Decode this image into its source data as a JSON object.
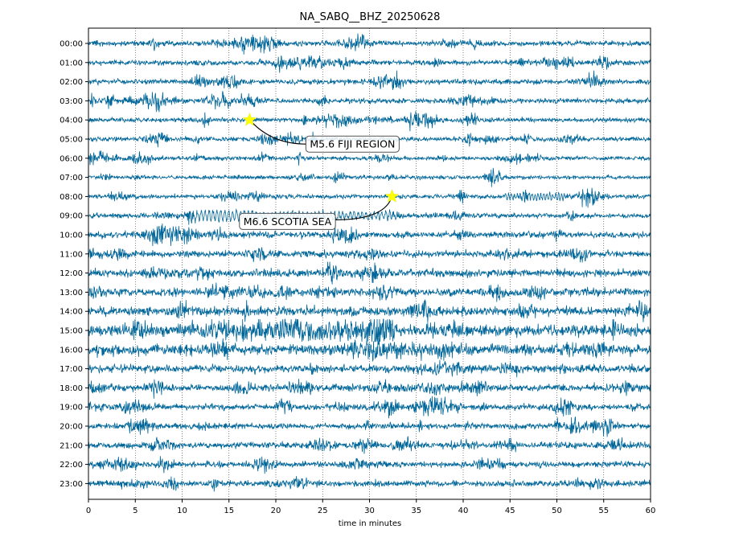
{
  "chart_data": {
    "type": "line",
    "title": "NA_SABQ__BHZ_20250628",
    "xlabel": "time in minutes",
    "ylabel": "",
    "xlim": [
      0,
      60
    ],
    "x_ticks": [
      0,
      5,
      10,
      15,
      20,
      25,
      30,
      35,
      40,
      45,
      50,
      55,
      60
    ],
    "row_labels": [
      "00:00",
      "01:00",
      "02:00",
      "03:00",
      "04:00",
      "05:00",
      "06:00",
      "07:00",
      "08:00",
      "09:00",
      "10:00",
      "11:00",
      "12:00",
      "13:00",
      "14:00",
      "15:00",
      "16:00",
      "17:00",
      "18:00",
      "19:00",
      "20:00",
      "21:00",
      "22:00",
      "23:00"
    ],
    "grid": "vertical dotted lines at every 5 minutes",
    "trace_color": "#006699",
    "trace_description": "24 hourly seismogram traces (helicorder); amplitude increases during hours 10:00–19:00",
    "events": [
      {
        "label": "M5.6 FIJI REGION",
        "row": "04:00",
        "minute": 17.2
      },
      {
        "label": "M6.6 SCOTIA SEA",
        "row": "08:00",
        "minute": 32.4
      }
    ],
    "marker_color": "#ffff00"
  }
}
